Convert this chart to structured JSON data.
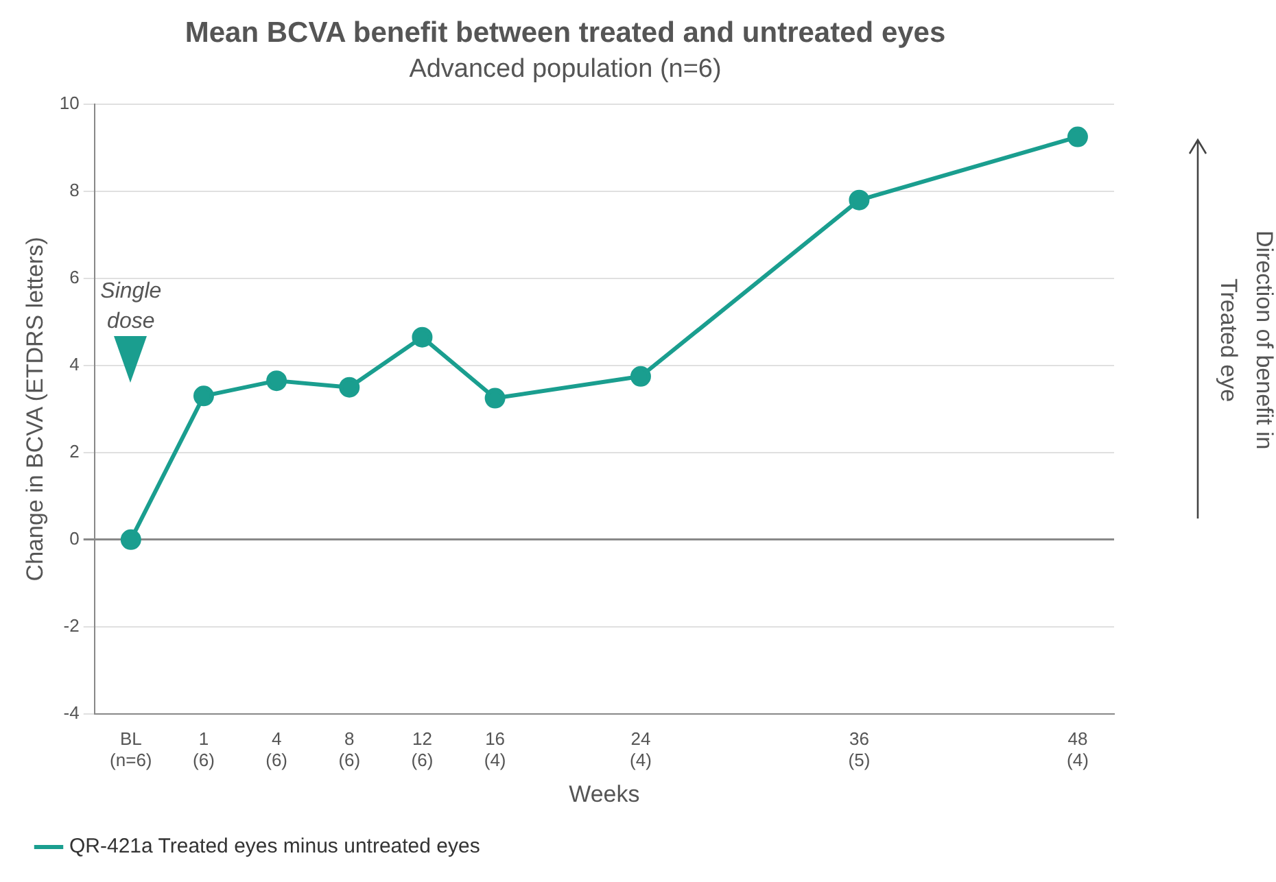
{
  "chart_data": {
    "type": "line",
    "title": "Mean BCVA benefit between treated and untreated eyes",
    "subtitle": "Advanced population (n=6)",
    "xlabel": "Weeks",
    "ylabel": "Change in BCVA (ETDRS letters)",
    "categories": [
      "BL\n(n=6)",
      "1\n(6)",
      "4\n(6)",
      "8\n(6)",
      "12\n(6)",
      "16\n(4)",
      null,
      "24\n(4)",
      null,
      null,
      "36\n(5)",
      null,
      null,
      "48\n(4)"
    ],
    "series": [
      {
        "name": "QR-421a Treated eyes minus untreated eyes",
        "color": "#1a9e8f",
        "values": [
          0,
          3.3,
          3.65,
          3.5,
          4.65,
          3.25,
          null,
          3.75,
          null,
          null,
          7.8,
          null,
          null,
          9.25
        ]
      }
    ],
    "ylim": [
      -4,
      10
    ],
    "yticks": [
      -4,
      -2,
      0,
      2,
      4,
      6,
      8,
      10
    ],
    "grid": "y",
    "legend": "bottom left",
    "marker": "circle",
    "line_style": "solid",
    "annotations": [
      "Single dose",
      "Direction of benefit in Treated eye"
    ]
  }
}
